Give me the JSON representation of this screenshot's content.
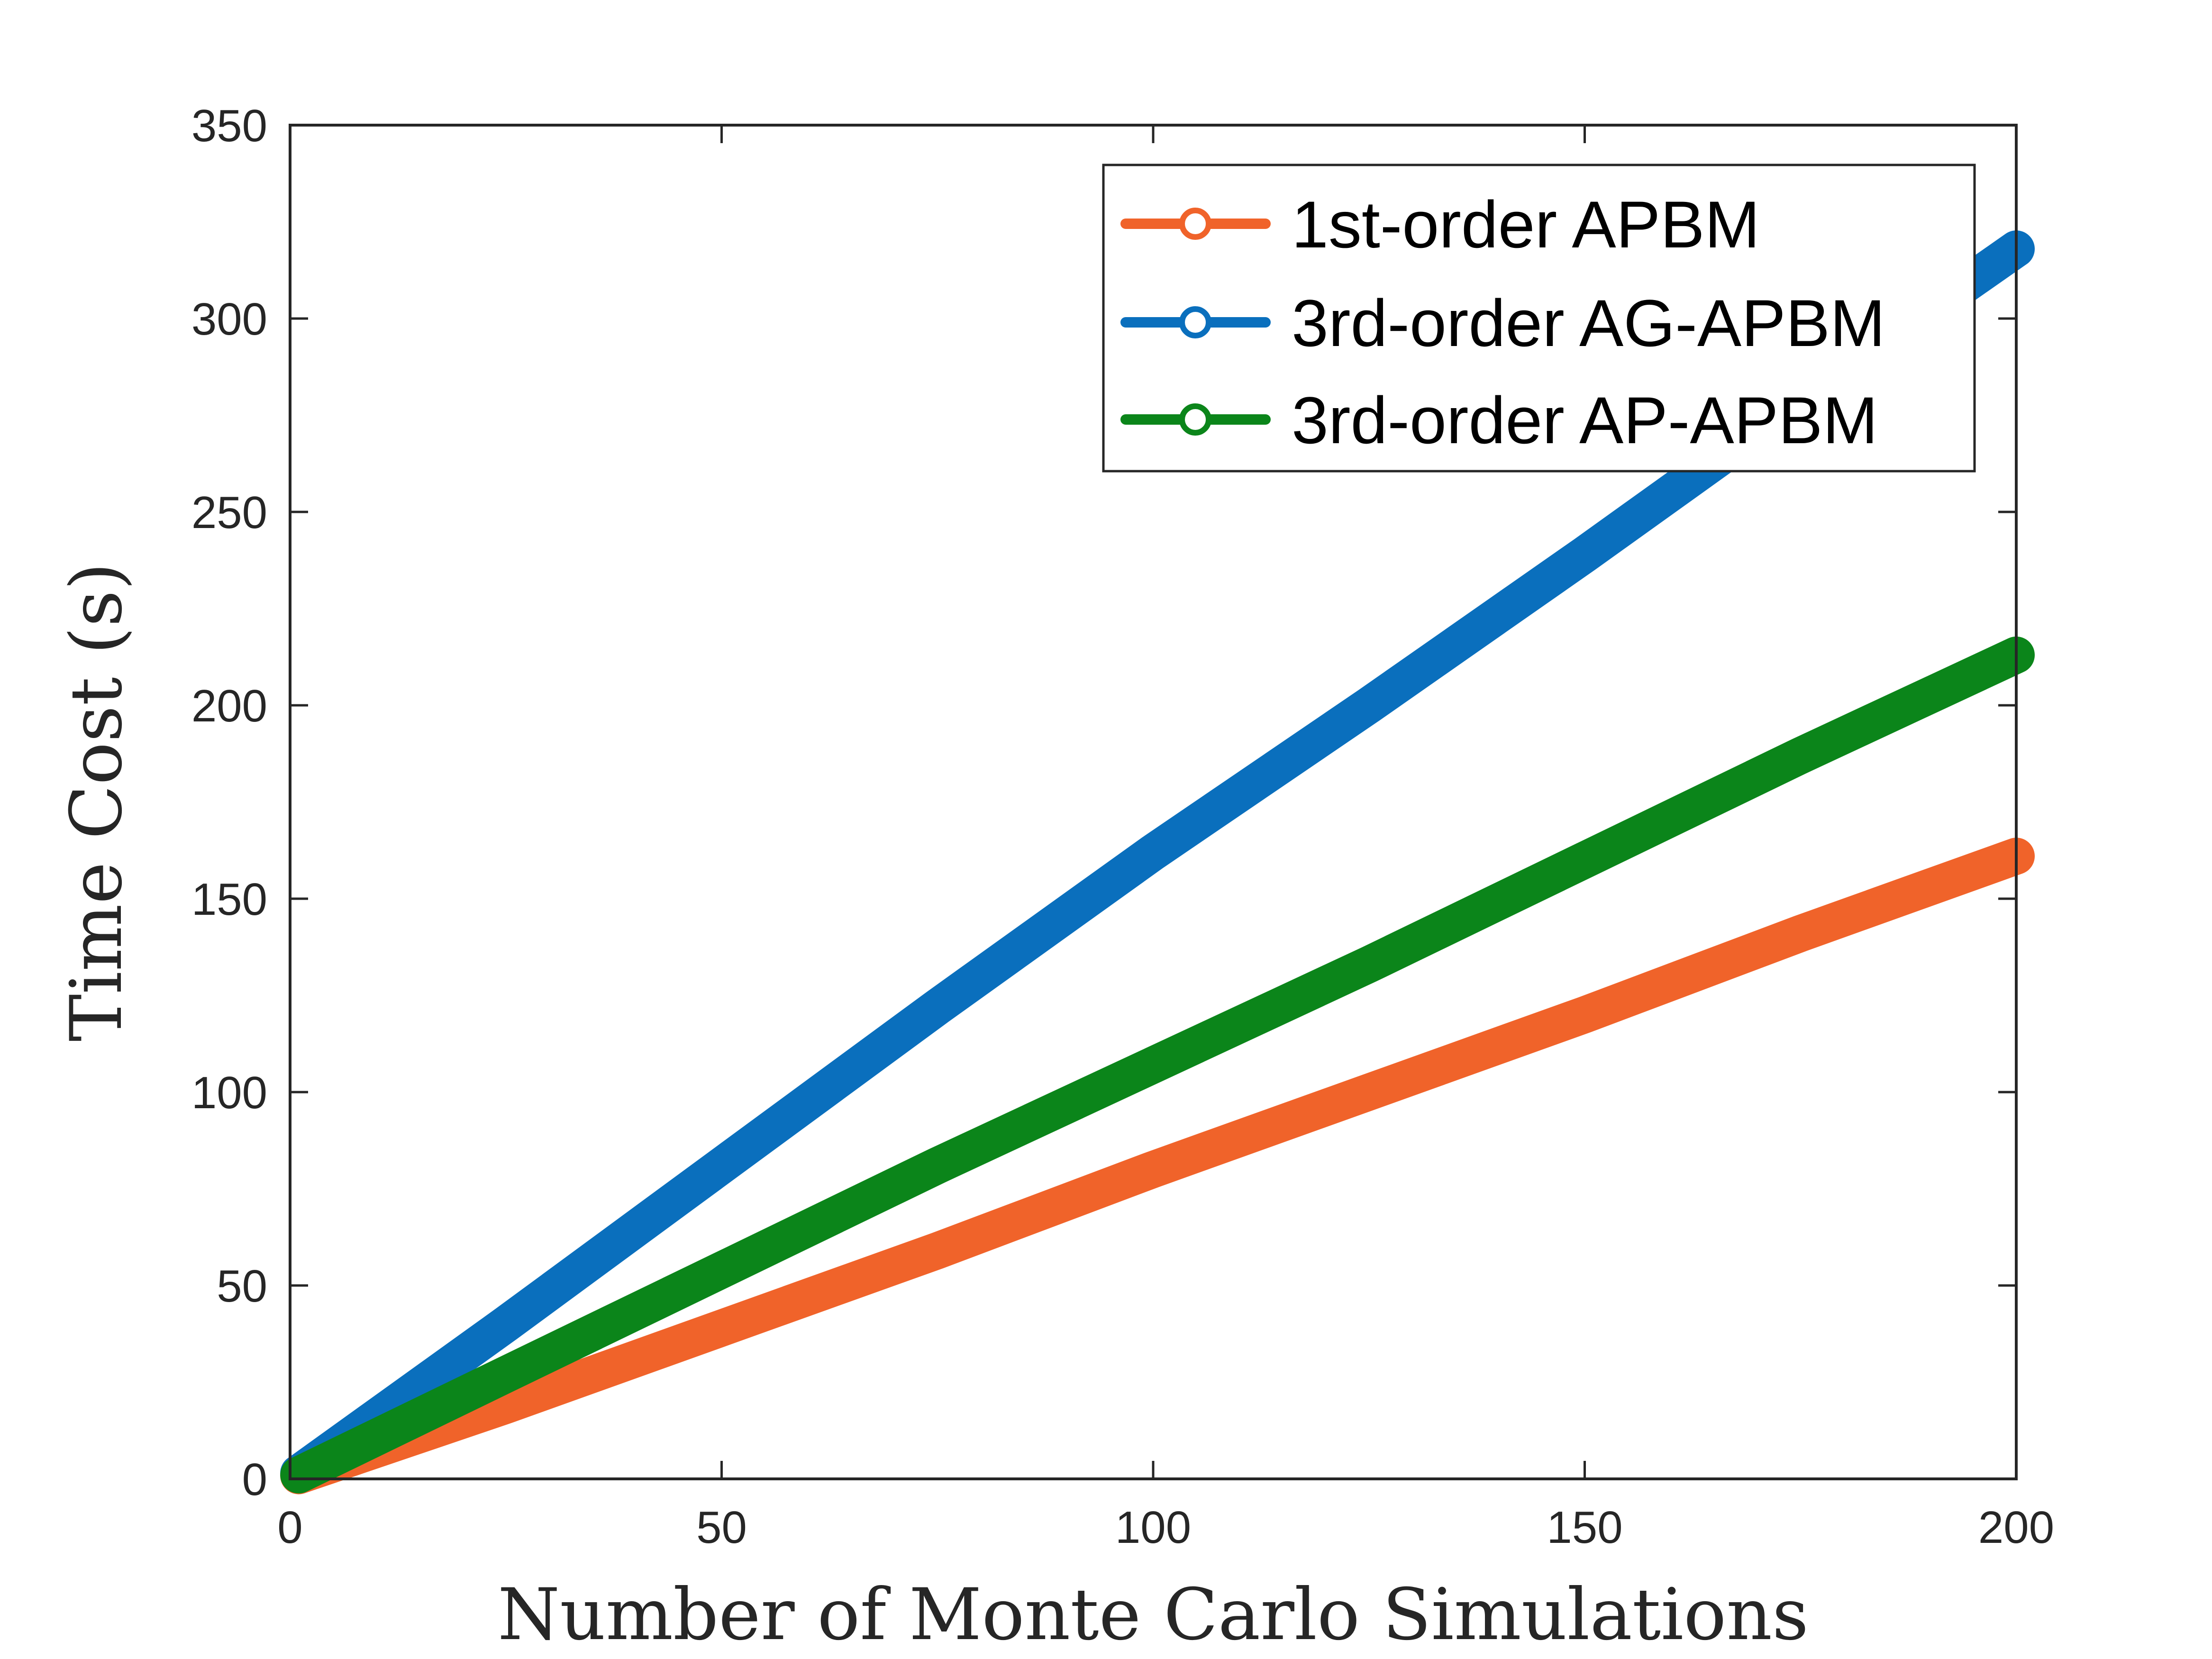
{
  "chart_data": {
    "type": "line",
    "title": "",
    "xlabel": "Number of Monte Carlo Simulations",
    "ylabel": "Time Cost (s)",
    "xlim": [
      0,
      200
    ],
    "ylim": [
      0,
      350
    ],
    "xticks": [
      0,
      50,
      100,
      150,
      200
    ],
    "yticks": [
      0,
      50,
      100,
      150,
      200,
      250,
      300,
      350
    ],
    "grid": false,
    "legend_position": "top-right",
    "x": [
      1,
      25,
      50,
      75,
      100,
      125,
      150,
      175,
      200
    ],
    "series": [
      {
        "name": "1st-order APBM",
        "color": "#F0632A",
        "values": [
          0.8,
          19,
          39,
          59,
          80,
          100,
          120,
          141,
          161
        ]
      },
      {
        "name": "3rd-order AG-APBM",
        "color": "#0A6FBD",
        "values": [
          1.5,
          40,
          81,
          122,
          162,
          200,
          239,
          279,
          318
        ]
      },
      {
        "name": "3rd-order AP-APBM",
        "color": "#0B851A",
        "values": [
          1.0,
          27,
          54,
          81,
          107,
          133,
          160,
          187,
          213
        ]
      }
    ]
  }
}
